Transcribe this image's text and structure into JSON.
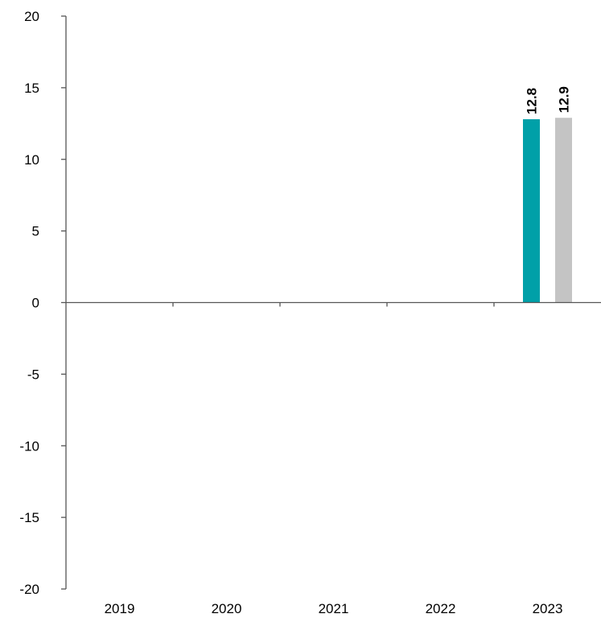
{
  "chart_data": {
    "type": "bar",
    "categories": [
      "2019",
      "2020",
      "2021",
      "2022",
      "2023"
    ],
    "series": [
      {
        "values": [
          null,
          null,
          null,
          null,
          12.8
        ],
        "color": "#00a0a8"
      },
      {
        "values": [
          null,
          null,
          null,
          null,
          12.9
        ],
        "color": "#c4c4c4"
      }
    ],
    "data_labels": [
      [
        null,
        null,
        null,
        null,
        "12.8"
      ],
      [
        null,
        null,
        null,
        null,
        "12.9"
      ]
    ],
    "yticks": [
      "20",
      "15",
      "10",
      "5",
      "0",
      "-5",
      "-10",
      "-15",
      "-20"
    ],
    "ytick_values": [
      20,
      15,
      10,
      5,
      0,
      -5,
      -10,
      -15,
      -20
    ],
    "ylim": [
      -20,
      20
    ],
    "grid": false,
    "legend": "none",
    "title": "",
    "xlabel": "",
    "ylabel": ""
  }
}
